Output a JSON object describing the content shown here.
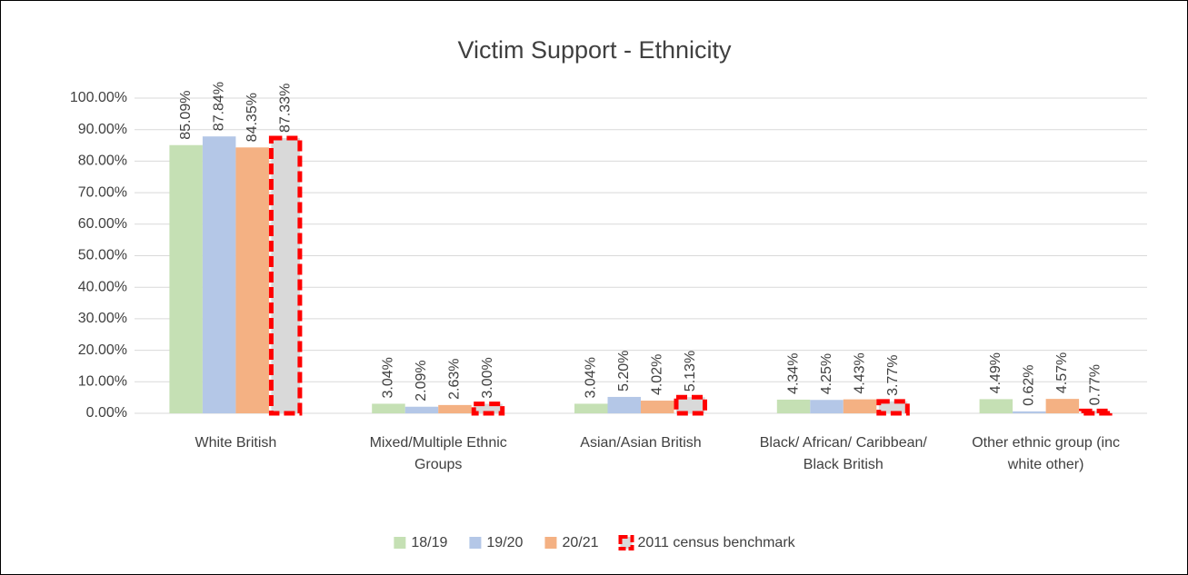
{
  "chart_data": {
    "type": "bar",
    "title": "Victim Support - Ethnicity",
    "categories": [
      "White British",
      "Mixed/Multiple Ethnic Groups",
      "Asian/Asian British",
      "Black/ African/ Caribbean/ Black British",
      "Other ethnic group (inc white other)"
    ],
    "series": [
      {
        "name": "18/19",
        "color": "#c5e0b4",
        "values": [
          85.09,
          3.04,
          3.04,
          4.34,
          4.49
        ],
        "value_labels": [
          "85.09%",
          "3.04%",
          "3.04%",
          "4.34%",
          "4.49%"
        ]
      },
      {
        "name": "19/20",
        "color": "#b4c7e7",
        "values": [
          87.84,
          2.09,
          5.2,
          4.25,
          0.62
        ],
        "value_labels": [
          "87.84%",
          "2.09%",
          "5.20%",
          "4.25%",
          "0.62%"
        ]
      },
      {
        "name": "20/21",
        "color": "#f4b183",
        "values": [
          84.35,
          2.63,
          4.02,
          4.43,
          4.57
        ],
        "value_labels": [
          "84.35%",
          "2.63%",
          "4.02%",
          "4.43%",
          "4.57%"
        ]
      },
      {
        "name": "2011 census benchmark",
        "color": "#d9d9d9",
        "edge_color": "#ff0000",
        "values": [
          87.33,
          3.0,
          5.13,
          3.77,
          0.77
        ],
        "value_labels": [
          "87.33%",
          "3.00%",
          "5.13%",
          "3.77%",
          "0.77%"
        ]
      }
    ],
    "ylim": [
      0,
      100
    ],
    "yticks": [
      {
        "value": 0,
        "label": "0.00%"
      },
      {
        "value": 10,
        "label": "10.00%"
      },
      {
        "value": 20,
        "label": "20.00%"
      },
      {
        "value": 30,
        "label": "30.00%"
      },
      {
        "value": 40,
        "label": "40.00%"
      },
      {
        "value": 50,
        "label": "50.00%"
      },
      {
        "value": 60,
        "label": "60.00%"
      },
      {
        "value": 70,
        "label": "70.00%"
      },
      {
        "value": 80,
        "label": "80.00%"
      },
      {
        "value": 90,
        "label": "90.00%"
      },
      {
        "value": 100,
        "label": "100.00%"
      }
    ],
    "grid": true,
    "legend": "bottom"
  }
}
